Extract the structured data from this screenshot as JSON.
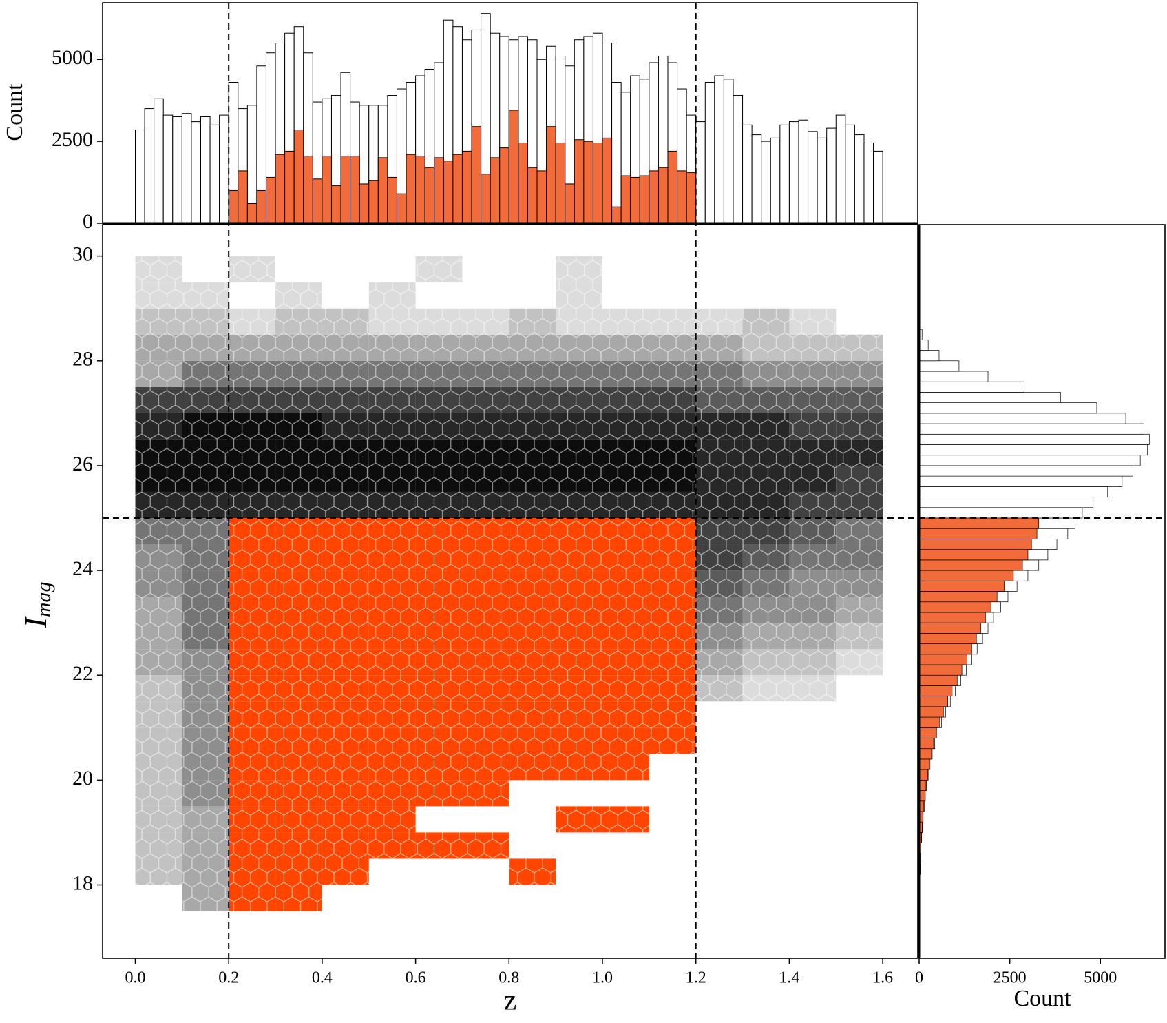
{
  "chart_data": [
    {
      "type": "hexbin",
      "xlabel": "z",
      "ylabel": "I",
      "ylabel_sub": "mag",
      "xlim": [
        -0.07,
        1.675
      ],
      "ylim": [
        16.6,
        30.6
      ],
      "xticks": [
        {
          "value": 0,
          "label": "0.0"
        },
        0.2,
        0.4,
        0.6,
        0.8,
        {
          "value": 1,
          "label": "1.0"
        },
        1.2,
        1.4,
        1.6
      ],
      "yticks": [
        18,
        20,
        22,
        24,
        26,
        28,
        30
      ],
      "cuts": {
        "x": [
          0.2,
          1.2
        ],
        "y": 25
      },
      "colors": {
        "light": "#dcdcdc",
        "dark": "#0d0d0d",
        "selected": "#ff4500"
      },
      "zbins": [
        0,
        0.1,
        0.2,
        0.3,
        0.4,
        0.5,
        0.6,
        0.7,
        0.8,
        0.9,
        1,
        1.1,
        1.2,
        1.3,
        1.4,
        1.5,
        1.6
      ],
      "Ibins": [
        17.5,
        18,
        18.5,
        19,
        19.5,
        20,
        20.5,
        21,
        21.5,
        22,
        22.5,
        23,
        23.5,
        24,
        24.5,
        25,
        25.5,
        26,
        26.5,
        27,
        27.5,
        28,
        28.5,
        29,
        29.5,
        30
      ],
      "levels": [
        [
          0,
          3,
          5,
          5,
          0,
          0,
          0,
          0,
          0,
          0,
          0,
          0,
          0,
          0,
          0,
          0
        ],
        [
          2,
          3,
          6,
          6,
          4,
          0,
          0,
          0,
          2,
          0,
          0,
          0,
          0,
          0,
          0,
          0
        ],
        [
          2,
          3,
          7,
          7,
          5,
          3,
          2,
          2,
          0,
          0,
          0,
          0,
          0,
          0,
          0,
          0
        ],
        [
          2,
          3,
          7,
          7,
          6,
          4,
          0,
          0,
          0,
          2,
          2,
          0,
          0,
          0,
          0,
          0
        ],
        [
          2,
          4,
          7,
          7,
          6,
          5,
          3,
          2,
          0,
          0,
          0,
          0,
          0,
          0,
          0,
          0
        ],
        [
          2,
          4,
          7,
          7,
          7,
          6,
          5,
          4,
          3,
          2,
          2,
          0,
          0,
          0,
          0,
          0
        ],
        [
          2,
          4,
          7,
          7,
          7,
          7,
          6,
          5,
          4,
          3,
          2,
          2,
          0,
          0,
          0,
          0
        ],
        [
          2,
          4,
          7,
          7,
          7,
          7,
          7,
          6,
          5,
          4,
          3,
          3,
          0,
          0,
          0,
          0
        ],
        [
          2,
          4,
          7,
          7,
          7,
          7,
          7,
          7,
          6,
          5,
          4,
          3,
          2,
          1,
          1,
          0
        ],
        [
          3,
          4,
          7,
          7,
          7,
          7,
          7,
          7,
          7,
          7,
          7,
          7,
          3,
          2,
          2,
          1
        ],
        [
          3,
          5,
          7,
          7,
          7,
          7,
          7,
          7,
          7,
          7,
          7,
          7,
          4,
          3,
          3,
          2
        ],
        [
          3,
          5,
          7,
          7,
          7,
          7,
          7,
          7,
          7,
          7,
          7,
          7,
          5,
          4,
          4,
          3
        ],
        [
          4,
          5,
          7,
          7,
          7,
          7,
          7,
          7,
          7,
          7,
          7,
          7,
          6,
          5,
          4,
          4
        ],
        [
          4,
          5,
          7,
          7,
          7,
          7,
          7,
          7,
          7,
          7,
          7,
          7,
          7,
          6,
          5,
          5
        ],
        [
          5,
          5,
          7,
          7,
          7,
          7,
          7,
          7,
          7,
          7,
          7,
          7,
          7,
          7,
          6,
          5
        ],
        [
          8,
          8,
          8,
          8,
          8,
          8,
          8,
          8,
          8,
          8,
          8,
          8,
          8,
          8,
          7,
          7
        ],
        [
          9,
          9,
          9,
          9,
          9,
          9,
          9,
          9,
          9,
          9,
          9,
          9,
          8,
          8,
          8,
          7
        ],
        [
          9,
          9,
          9,
          9,
          9,
          9,
          9,
          9,
          9,
          9,
          9,
          9,
          8,
          8,
          8,
          8
        ],
        [
          8,
          9,
          9,
          9,
          8,
          8,
          8,
          8,
          8,
          8,
          8,
          8,
          8,
          8,
          7,
          7
        ],
        [
          7,
          7,
          7,
          7,
          7,
          7,
          7,
          7,
          7,
          7,
          7,
          7,
          6,
          6,
          6,
          6
        ],
        [
          3,
          5,
          5,
          5,
          5,
          5,
          5,
          5,
          5,
          5,
          5,
          5,
          5,
          4,
          4,
          4
        ],
        [
          3,
          3,
          3,
          3,
          3,
          3,
          3,
          3,
          3,
          3,
          3,
          3,
          3,
          2,
          2,
          2
        ],
        [
          2,
          2,
          1,
          2,
          2,
          1,
          1,
          1,
          2,
          1,
          1,
          1,
          1,
          2,
          1,
          0
        ],
        [
          1,
          1,
          0,
          1,
          0,
          1,
          0,
          0,
          0,
          1,
          0,
          0,
          0,
          0,
          0,
          0
        ],
        [
          1,
          0,
          1,
          0,
          0,
          0,
          1,
          0,
          0,
          1,
          0,
          0,
          0,
          0,
          0,
          0
        ]
      ]
    },
    {
      "type": "histogram",
      "orientation": "vertical",
      "ylabel": "Count",
      "xlim": [
        -0.07,
        1.675
      ],
      "ylim": [
        0,
        6730
      ],
      "yticks": [
        0,
        2500,
        5000
      ],
      "bins": [
        0,
        0.02,
        0.04,
        0.06,
        0.08,
        0.1,
        0.12,
        0.14,
        0.16,
        0.18,
        0.2,
        0.22,
        0.24,
        0.26,
        0.28,
        0.3,
        0.32,
        0.34,
        0.36,
        0.38,
        0.4,
        0.42,
        0.44,
        0.46,
        0.48,
        0.5,
        0.52,
        0.54,
        0.56,
        0.58,
        0.6,
        0.62,
        0.64,
        0.66,
        0.68,
        0.7,
        0.72,
        0.74,
        0.76,
        0.78,
        0.8,
        0.82,
        0.84,
        0.86,
        0.88,
        0.9,
        0.92,
        0.94,
        0.96,
        0.98,
        1,
        1.02,
        1.04,
        1.06,
        1.08,
        1.1,
        1.12,
        1.14,
        1.16,
        1.18,
        1.2,
        1.22,
        1.24,
        1.26,
        1.28,
        1.3,
        1.32,
        1.34,
        1.36,
        1.38,
        1.4,
        1.42,
        1.44,
        1.46,
        1.48,
        1.5,
        1.52,
        1.54,
        1.56,
        1.58,
        1.6
      ],
      "series": [
        {
          "color": "#ffffff",
          "values": [
            2850,
            3500,
            3800,
            3300,
            3250,
            3350,
            3100,
            3250,
            3000,
            3300,
            4300,
            3500,
            3600,
            4800,
            5200,
            5500,
            5800,
            6000,
            5200,
            3700,
            3800,
            3900,
            4600,
            3700,
            3600,
            3600,
            3600,
            3900,
            4100,
            4300,
            4500,
            4700,
            4900,
            6200,
            6000,
            5600,
            5900,
            6400,
            5800,
            5700,
            5600,
            5700,
            5600,
            5000,
            5400,
            5100,
            4800,
            5600,
            5700,
            5800,
            5500,
            4300,
            4000,
            4500,
            4400,
            4900,
            5100,
            4900,
            4100,
            3300,
            3100,
            4300,
            4500,
            4400,
            3900,
            3000,
            2700,
            2500,
            2600,
            3000,
            3100,
            3150,
            2800,
            2600,
            2900,
            3300,
            3000,
            2700,
            2450,
            2200
          ]
        },
        {
          "color": "#f26b3a",
          "values": [
            null,
            null,
            null,
            null,
            null,
            null,
            null,
            null,
            null,
            null,
            1000,
            1600,
            600,
            1000,
            1400,
            2100,
            2200,
            2850,
            2050,
            1350,
            2050,
            1150,
            2050,
            2050,
            1200,
            1300,
            2000,
            1400,
            900,
            2100,
            2050,
            1700,
            2000,
            1900,
            2100,
            2200,
            2950,
            1500,
            2000,
            2300,
            3450,
            2450,
            1700,
            1600,
            2950,
            2450,
            1200,
            2550,
            2500,
            2450,
            2600,
            500,
            1450,
            1400,
            1450,
            1600,
            1700,
            2200,
            1600,
            1550,
            null,
            null,
            null,
            null,
            null,
            null,
            null,
            null,
            null,
            null,
            null,
            null,
            null,
            null,
            null,
            null,
            null,
            null,
            null,
            null
          ]
        }
      ]
    },
    {
      "type": "histogram",
      "orientation": "horizontal",
      "xlabel": "Count",
      "xlim": [
        0,
        6800
      ],
      "ylim": [
        16.6,
        30.6
      ],
      "xticks": [
        0,
        2500,
        5000
      ],
      "bins": [
        18,
        18.2,
        18.4,
        18.6,
        18.8,
        19,
        19.2,
        19.4,
        19.6,
        19.8,
        20,
        20.2,
        20.4,
        20.6,
        20.8,
        21,
        21.2,
        21.4,
        21.6,
        21.8,
        22,
        22.2,
        22.4,
        22.6,
        22.8,
        23,
        23.2,
        23.4,
        23.6,
        23.8,
        24,
        24.2,
        24.4,
        24.6,
        24.8,
        25,
        25.2,
        25.4,
        25.6,
        25.8,
        26,
        26.2,
        26.4,
        26.6,
        26.8,
        27,
        27.2,
        27.4,
        27.6,
        27.8,
        28,
        28.2,
        28.4,
        28.6
      ],
      "series": [
        {
          "color": "#ffffff",
          "values": [
            20,
            30,
            40,
            50,
            70,
            90,
            110,
            140,
            170,
            200,
            250,
            300,
            360,
            430,
            520,
            620,
            730,
            860,
            1000,
            1150,
            1300,
            1450,
            1600,
            1750,
            1900,
            2050,
            2250,
            2450,
            2700,
            3000,
            3300,
            3550,
            3800,
            4100,
            4300,
            4500,
            4800,
            5200,
            5600,
            5900,
            6100,
            6300,
            6350,
            6200,
            5700,
            4900,
            3900,
            2900,
            1900,
            1100,
            550,
            250,
            80
          ]
        },
        {
          "color": "#f26b3a",
          "values": [
            19,
            28,
            38,
            48,
            66,
            85,
            100,
            130,
            160,
            190,
            235,
            280,
            340,
            400,
            480,
            570,
            670,
            790,
            910,
            1050,
            1180,
            1320,
            1450,
            1580,
            1700,
            1830,
            1980,
            2150,
            2350,
            2600,
            2850,
            3000,
            3100,
            3250,
            3300,
            null,
            null,
            null,
            null,
            null,
            null,
            null,
            null,
            null,
            null,
            null,
            null,
            null,
            null,
            null,
            null,
            null,
            null
          ]
        }
      ]
    }
  ]
}
